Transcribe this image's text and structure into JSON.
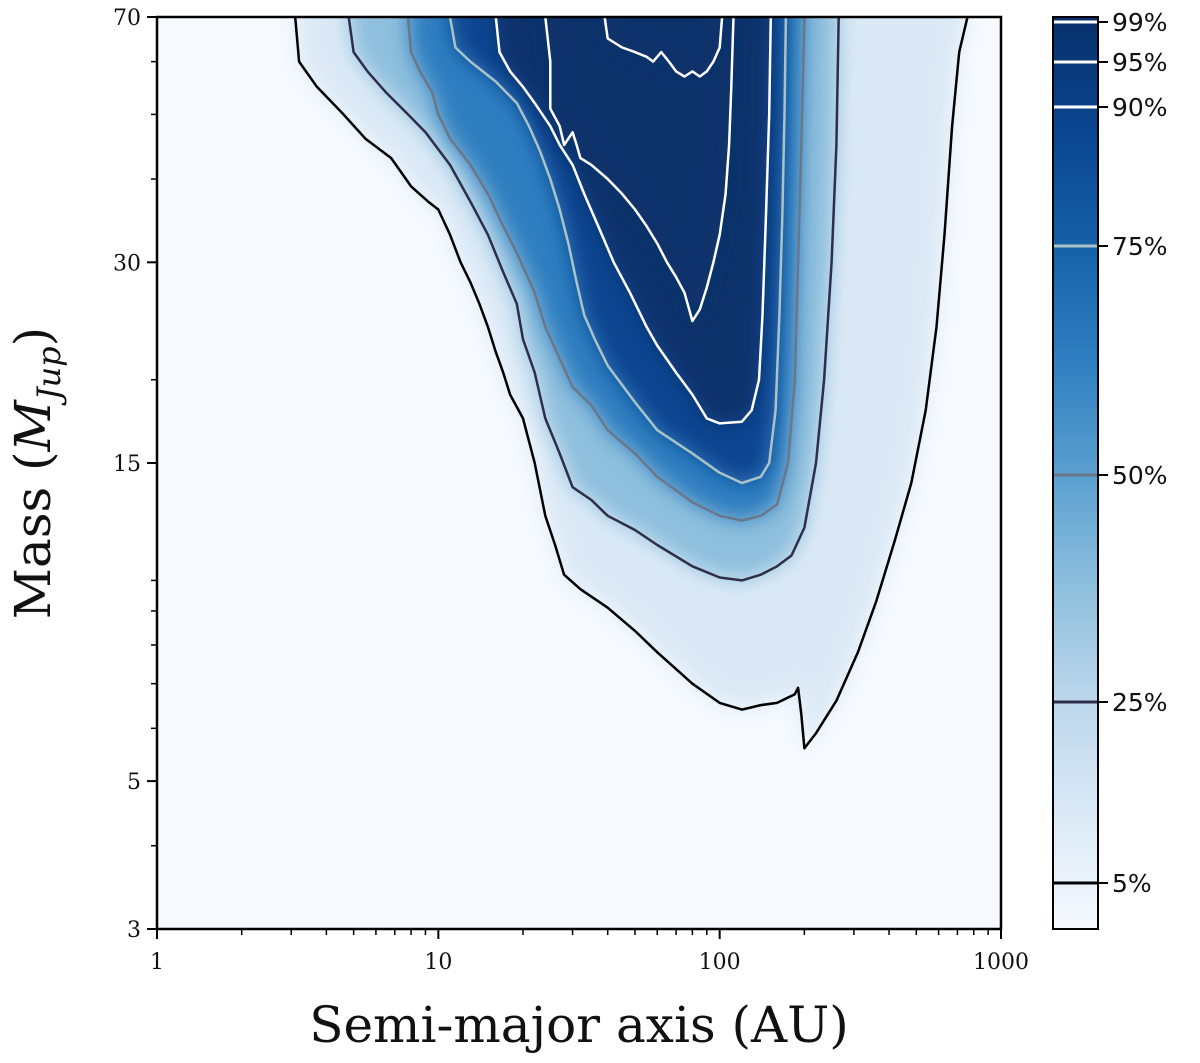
{
  "chart_data": {
    "type": "heatmap",
    "title": "",
    "xlabel": "Semi-major axis (AU)",
    "ylabel_main": "Mass (",
    "ylabel_sym": "M",
    "ylabel_sub": "Jup",
    "ylabel_close": ")",
    "xscale": "log",
    "yscale": "log",
    "xlim": [
      1,
      1000
    ],
    "ylim": [
      3,
      70
    ],
    "xticks": [
      {
        "value": 1,
        "label": "1"
      },
      {
        "value": 10,
        "label": "10"
      },
      {
        "value": 100,
        "label": "100"
      },
      {
        "value": 1000,
        "label": "1000"
      }
    ],
    "yticks": [
      {
        "value": 3,
        "label": "3"
      },
      {
        "value": 5,
        "label": "5"
      },
      {
        "value": 15,
        "label": "15"
      },
      {
        "value": 30,
        "label": "30"
      },
      {
        "value": 70,
        "label": "70"
      }
    ],
    "colorbar": {
      "ticks": [
        {
          "value": 5,
          "label": "5%",
          "color": "#000000"
        },
        {
          "value": 25,
          "label": "25%",
          "color": "#2e2e48"
        },
        {
          "value": 50,
          "label": "50%",
          "color": "#6a7788"
        },
        {
          "value": 75,
          "label": "75%",
          "color": "#a9c3c7"
        },
        {
          "value": 90,
          "label": "90%",
          "color": "#ffffff"
        },
        {
          "value": 95,
          "label": "95%",
          "color": "#ffffff"
        },
        {
          "value": 99,
          "label": "99%",
          "color": "#ffffff"
        }
      ],
      "gradient": [
        "#f6fafe",
        "#dbe9f6",
        "#bcd7ec",
        "#8ebfdd",
        "#5a9fcf",
        "#2f7ec0",
        "#1660a8",
        "#0a4590",
        "#08306b"
      ]
    },
    "contours": [
      {
        "level": 5,
        "color": "#000000",
        "points": [
          [
            3.1,
            70
          ],
          [
            3.2,
            60
          ],
          [
            3.7,
            55
          ],
          [
            4.6,
            50
          ],
          [
            5.5,
            46
          ],
          [
            6.8,
            43
          ],
          [
            8,
            39
          ],
          [
            9.2,
            37
          ],
          [
            10,
            36
          ],
          [
            11,
            33
          ],
          [
            12,
            30
          ],
          [
            13,
            28
          ],
          [
            14,
            26
          ],
          [
            15,
            24
          ],
          [
            16,
            22
          ],
          [
            17,
            20.5
          ],
          [
            18,
            19
          ],
          [
            20,
            17.5
          ],
          [
            22,
            15
          ],
          [
            24,
            12.5
          ],
          [
            26,
            11.3
          ],
          [
            28,
            10.2
          ],
          [
            32,
            9.7
          ],
          [
            40,
            9.1
          ],
          [
            50,
            8.4
          ],
          [
            60,
            7.8
          ],
          [
            80,
            7.0
          ],
          [
            100,
            6.55
          ],
          [
            120,
            6.4
          ],
          [
            140,
            6.5
          ],
          [
            160,
            6.55
          ],
          [
            185,
            6.75
          ],
          [
            190,
            6.9
          ],
          [
            195,
            6.3
          ],
          [
            200,
            5.6
          ],
          [
            220,
            5.9
          ],
          [
            260,
            6.6
          ],
          [
            310,
            7.8
          ],
          [
            360,
            9.3
          ],
          [
            420,
            11.5
          ],
          [
            480,
            14
          ],
          [
            540,
            18
          ],
          [
            590,
            24
          ],
          [
            630,
            33
          ],
          [
            670,
            48
          ],
          [
            710,
            62
          ],
          [
            760,
            70
          ]
        ]
      },
      {
        "level": 25,
        "color": "#2e2e48",
        "points": [
          [
            4.8,
            70
          ],
          [
            5.0,
            62
          ],
          [
            5.6,
            58
          ],
          [
            6.5,
            54
          ],
          [
            7.8,
            50
          ],
          [
            9,
            47
          ],
          [
            11,
            42
          ],
          [
            13,
            37
          ],
          [
            15,
            33
          ],
          [
            17,
            29
          ],
          [
            19,
            26
          ],
          [
            20,
            23
          ],
          [
            22,
            20.5
          ],
          [
            24,
            17.5
          ],
          [
            27,
            15.5
          ],
          [
            30,
            13.8
          ],
          [
            35,
            13.2
          ],
          [
            40,
            12.5
          ],
          [
            50,
            11.9
          ],
          [
            60,
            11.3
          ],
          [
            80,
            10.5
          ],
          [
            100,
            10.1
          ],
          [
            120,
            10.0
          ],
          [
            140,
            10.2
          ],
          [
            160,
            10.5
          ],
          [
            180,
            10.9
          ],
          [
            200,
            12
          ],
          [
            220,
            15
          ],
          [
            235,
            20
          ],
          [
            250,
            30
          ],
          [
            260,
            45
          ],
          [
            265,
            70
          ]
        ]
      },
      {
        "level": 50,
        "color": "#6a7788",
        "points": [
          [
            7.8,
            70
          ],
          [
            8,
            62
          ],
          [
            8.6,
            58
          ],
          [
            9.5,
            54
          ],
          [
            10,
            50
          ],
          [
            11,
            46
          ],
          [
            13,
            42
          ],
          [
            15,
            38
          ],
          [
            17,
            34
          ],
          [
            19,
            31
          ],
          [
            22,
            27
          ],
          [
            24,
            24
          ],
          [
            27,
            21.5
          ],
          [
            30,
            19.5
          ],
          [
            35,
            18.3
          ],
          [
            40,
            16.8
          ],
          [
            50,
            15.5
          ],
          [
            60,
            14.3
          ],
          [
            80,
            13.1
          ],
          [
            100,
            12.5
          ],
          [
            120,
            12.3
          ],
          [
            140,
            12.5
          ],
          [
            160,
            13
          ],
          [
            175,
            15
          ],
          [
            185,
            20
          ],
          [
            190,
            30
          ],
          [
            195,
            45
          ],
          [
            200,
            70
          ]
        ]
      },
      {
        "level": 75,
        "color": "#a9c3c7",
        "points": [
          [
            11,
            70
          ],
          [
            11.5,
            63
          ],
          [
            13,
            60
          ],
          [
            16,
            56
          ],
          [
            19,
            52
          ],
          [
            21,
            48
          ],
          [
            23,
            44
          ],
          [
            25,
            40
          ],
          [
            27,
            36
          ],
          [
            29,
            32
          ],
          [
            31,
            28
          ],
          [
            33,
            25
          ],
          [
            36,
            23
          ],
          [
            40,
            21
          ],
          [
            50,
            18.5
          ],
          [
            60,
            16.8
          ],
          [
            80,
            15.5
          ],
          [
            100,
            14.5
          ],
          [
            120,
            14.0
          ],
          [
            140,
            14.3
          ],
          [
            150,
            15
          ],
          [
            158,
            18
          ],
          [
            163,
            25
          ],
          [
            167,
            35
          ],
          [
            170,
            50
          ],
          [
            172,
            70
          ]
        ]
      },
      {
        "level": 90,
        "color": "#ffffff",
        "points": [
          [
            16,
            70
          ],
          [
            16.5,
            62
          ],
          [
            18,
            58
          ],
          [
            20,
            55
          ],
          [
            22,
            52
          ],
          [
            25,
            48
          ],
          [
            27,
            45
          ],
          [
            30,
            42
          ],
          [
            33,
            38
          ],
          [
            37,
            34
          ],
          [
            42,
            30
          ],
          [
            48,
            27
          ],
          [
            55,
            24
          ],
          [
            60,
            22.5
          ],
          [
            70,
            20.5
          ],
          [
            80,
            19
          ],
          [
            90,
            17.5
          ],
          [
            100,
            17.2
          ],
          [
            120,
            17.3
          ],
          [
            130,
            18
          ],
          [
            138,
            20
          ],
          [
            142,
            25
          ],
          [
            146,
            35
          ],
          [
            150,
            50
          ],
          [
            152,
            70
          ]
        ]
      },
      {
        "level": 95,
        "color": "#ffffff",
        "points": [
          [
            24,
            70
          ],
          [
            25,
            60
          ],
          [
            25,
            51
          ],
          [
            27,
            48
          ],
          [
            28,
            45
          ],
          [
            30,
            47
          ],
          [
            31,
            45
          ],
          [
            32,
            43
          ],
          [
            35,
            42
          ],
          [
            40,
            40
          ],
          [
            45,
            38
          ],
          [
            50,
            36
          ],
          [
            55,
            34
          ],
          [
            60,
            32
          ],
          [
            65,
            30
          ],
          [
            70,
            28.5
          ],
          [
            75,
            27
          ],
          [
            80,
            24.5
          ],
          [
            85,
            25.5
          ],
          [
            90,
            27.5
          ],
          [
            95,
            30
          ],
          [
            100,
            33
          ],
          [
            105,
            38
          ],
          [
            108,
            45
          ],
          [
            110,
            55
          ],
          [
            112,
            70
          ]
        ]
      },
      {
        "level": 99,
        "color": "#ffffff",
        "points": [
          [
            39,
            70
          ],
          [
            40,
            65
          ],
          [
            45,
            63
          ],
          [
            50,
            62
          ],
          [
            55,
            61
          ],
          [
            58,
            60
          ],
          [
            62,
            62
          ],
          [
            66,
            60
          ],
          [
            70,
            58
          ],
          [
            75,
            57
          ],
          [
            80,
            58
          ],
          [
            85,
            57
          ],
          [
            90,
            58
          ],
          [
            95,
            60
          ],
          [
            100,
            63
          ],
          [
            102,
            70
          ]
        ]
      }
    ]
  }
}
